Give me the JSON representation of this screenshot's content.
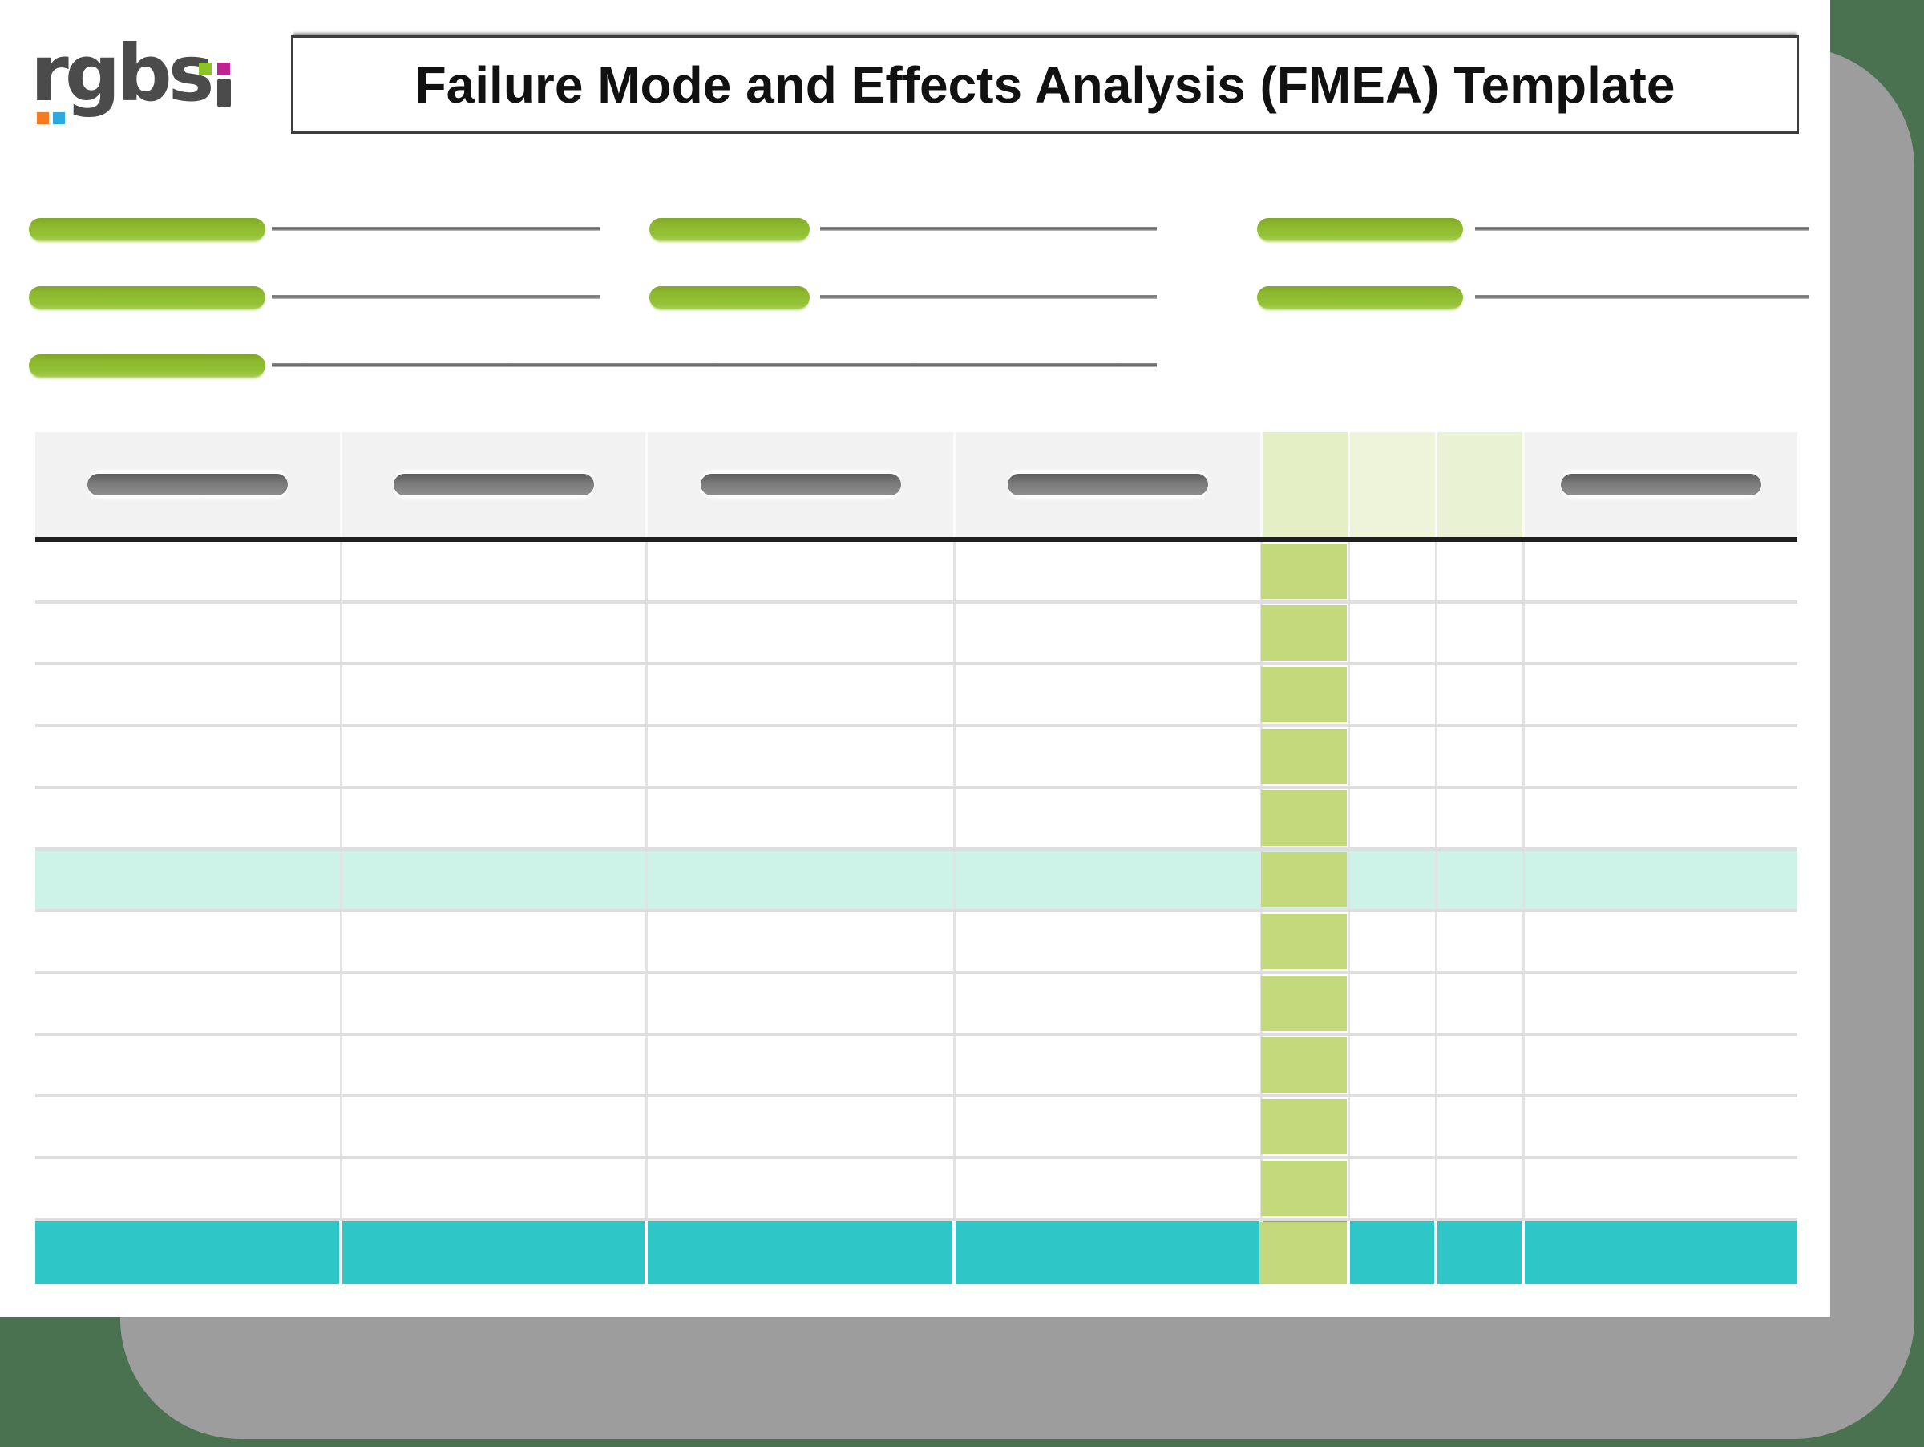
{
  "header": {
    "title": "Failure Mode and Effects Analysis (FMEA) Template"
  },
  "logo": {
    "text": "rgbsi"
  },
  "form": {
    "groups": [
      {
        "position": "left",
        "field_count": 3
      },
      {
        "position": "center",
        "field_count": 2
      },
      {
        "position": "right",
        "field_count": 2
      }
    ]
  },
  "table": {
    "column_count": 8,
    "body_row_count": 11,
    "green_column": 5,
    "highlight_row": 6,
    "header_pill_columns": [
      1,
      2,
      3,
      4,
      8
    ],
    "tinted_header_columns": [
      5,
      6,
      7
    ],
    "has_total_row": true
  },
  "colors": {
    "background": "#4a7150",
    "shadow": "#9d9d9d",
    "page": "#ffffff",
    "logo_text": "#4b4b4b",
    "logo_green": "#8bc32c",
    "logo_magenta": "#c02490",
    "logo_orange": "#f37b21",
    "logo_blue": "#2caadf",
    "title_border": "#3c3c3c",
    "title_text": "#111111",
    "field_pill_green": "#8db82e",
    "field_line_gray": "#636363",
    "header_bg": "#f2f2f2",
    "header_tint_strong": "#e5efc6",
    "header_tint_soft": "#edf4d9",
    "header_tint_mid": "#e9f2d2",
    "header_pill_gray": "#7a7a7a",
    "rule_black": "#1f1f1f",
    "grid_line": "#dedede",
    "col_divider": "#e3e3e3",
    "green_column": "#c3d97b",
    "mint_row": "#cdf2e8",
    "teal_row": "#2fc6c8"
  }
}
